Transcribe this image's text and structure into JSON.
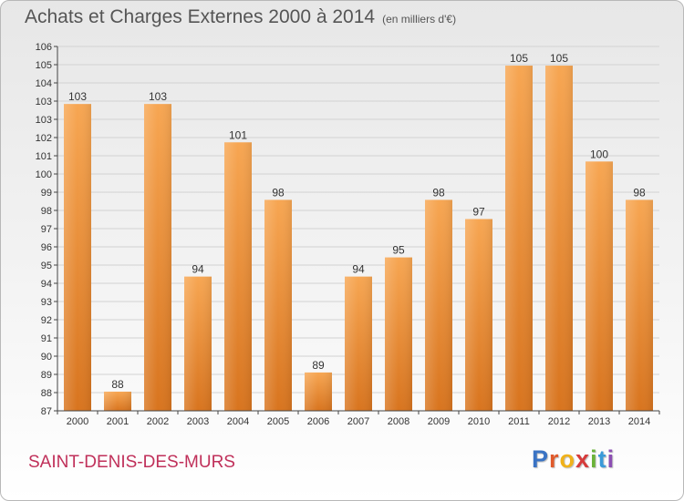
{
  "header": {
    "title": "Achats et Charges Externes 2000 à 2014",
    "unit": "(en milliers d'€)"
  },
  "footer": {
    "city": "SAINT-DENIS-DES-MURS",
    "logo": {
      "letters": [
        "P",
        "r",
        "o",
        "x",
        "i",
        "t",
        "i"
      ],
      "colors": [
        "#3a73c4",
        "#e05a2b",
        "#f0b21b",
        "#d63b3b",
        "#6bb33a",
        "#3a9ad9",
        "#8c4fb3"
      ]
    }
  },
  "chart_data": {
    "type": "bar",
    "title": "Achats et Charges Externes 2000 à 2014",
    "subtitle": "(en milliers d'€)",
    "xlabel": "",
    "ylabel": "",
    "categories": [
      "2000",
      "2001",
      "2002",
      "2003",
      "2004",
      "2005",
      "2006",
      "2007",
      "2008",
      "2009",
      "2010",
      "2011",
      "2012",
      "2013",
      "2014"
    ],
    "values": [
      103,
      88,
      103,
      94,
      101,
      98,
      89,
      94,
      95,
      98,
      97,
      105,
      105,
      100,
      98
    ],
    "ylim": [
      87,
      106
    ],
    "yticks": [
      "87",
      "88",
      "89",
      "90",
      "91",
      "92",
      "93",
      "94",
      "95",
      "96",
      "97",
      "98",
      "99",
      "100",
      "101",
      "102",
      "103",
      "103",
      "104",
      "105",
      "106"
    ],
    "grid": true,
    "bar_color": "#f0903a",
    "legend": "none"
  }
}
